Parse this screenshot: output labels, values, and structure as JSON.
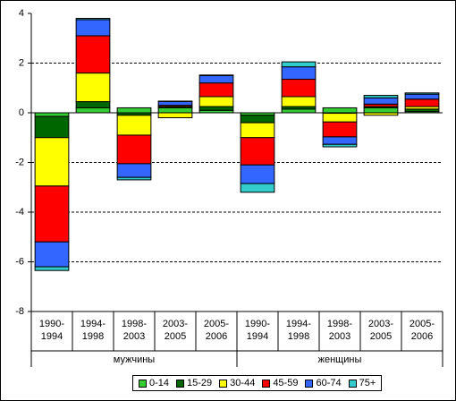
{
  "chart_data": {
    "type": "bar",
    "stacked": true,
    "categories": [
      "1990-1994",
      "1994-1998",
      "1998-2003",
      "2003-2005",
      "2005-2006",
      "1990-1994",
      "1994-1998",
      "1998-2003",
      "2003-2005",
      "2005-2006"
    ],
    "groups": [
      "мужчины",
      "женщины"
    ],
    "series": [
      {
        "name": "0-14",
        "color": "#33cc33",
        "values": [
          -0.15,
          0.2,
          0.2,
          0.2,
          0.1,
          -0.1,
          0.15,
          0.2,
          0.2,
          0.05
        ]
      },
      {
        "name": "15-29",
        "color": "#006600",
        "values": [
          -0.85,
          0.25,
          -0.1,
          0.05,
          0.15,
          -0.3,
          0.1,
          -0.02,
          0.05,
          0.1
        ]
      },
      {
        "name": "30-44",
        "color": "#ffff00",
        "values": [
          -1.95,
          1.15,
          -0.8,
          -0.2,
          0.4,
          -0.6,
          0.4,
          -0.35,
          -0.1,
          0.1
        ]
      },
      {
        "name": "45-59",
        "color": "#ff0000",
        "values": [
          -2.25,
          1.5,
          -1.15,
          0.05,
          0.55,
          -1.1,
          0.7,
          -0.6,
          0.1,
          0.3
        ]
      },
      {
        "name": "60-74",
        "color": "#3366ff",
        "values": [
          -1.0,
          0.65,
          -0.55,
          0.15,
          0.3,
          -0.75,
          0.5,
          -0.3,
          0.25,
          0.2
        ]
      },
      {
        "name": "75+",
        "color": "#33cccc",
        "values": [
          -0.15,
          0.05,
          -0.1,
          0.02,
          0.02,
          -0.35,
          0.2,
          -0.1,
          0.1,
          0.05
        ]
      }
    ],
    "ylim": [
      -8,
      4
    ],
    "yticks": [
      -8,
      -6,
      -4,
      -2,
      0,
      2,
      4
    ],
    "grid": true,
    "legend": "bottom"
  }
}
